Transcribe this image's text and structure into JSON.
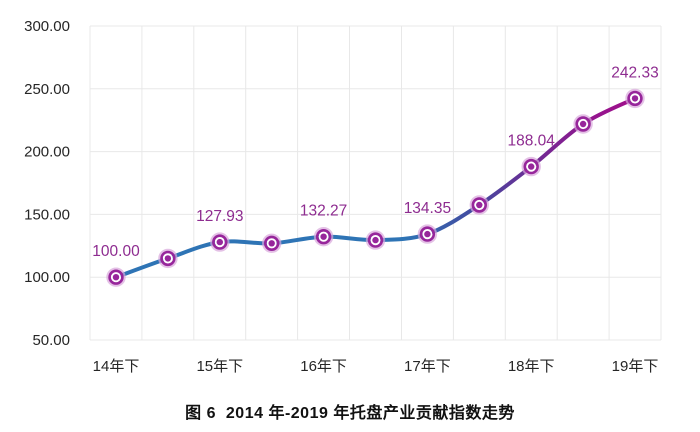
{
  "figure": {
    "caption": "图 6  2014 年-2019 年托盘产业贡献指数走势"
  },
  "colors": {
    "background": "#FFFFFF",
    "gridline": "#E8E8E8",
    "axis_text": "#262626",
    "data_label": "#8E2C90",
    "marker": "#97269B",
    "marker_halo": "#D9A6DB",
    "line_gradient": [
      {
        "offset": "0%",
        "color": "#2E74B5"
      },
      {
        "offset": "55%",
        "color": "#2E74B5"
      },
      {
        "offset": "68%",
        "color": "#45489F"
      },
      {
        "offset": "78%",
        "color": "#6F2B94"
      },
      {
        "offset": "88%",
        "color": "#93158E"
      },
      {
        "offset": "100%",
        "color": "#AA0B8A"
      }
    ]
  },
  "chart_data": {
    "type": "line",
    "title": "图 6  2014 年-2019 年托盘产业贡献指数走势",
    "xlabel": "",
    "ylabel": "",
    "ylim": [
      50,
      300
    ],
    "grid": true,
    "legend_position": "none",
    "y_ticks": [
      {
        "value": 300,
        "label": "300.00"
      },
      {
        "value": 250,
        "label": "250.00"
      },
      {
        "value": 200,
        "label": "200.00"
      },
      {
        "value": 150,
        "label": "150.00"
      },
      {
        "value": 100,
        "label": "100.00"
      },
      {
        "value": 50,
        "label": "50.00"
      }
    ],
    "x_ticks": [
      {
        "position": 0,
        "label": "14年下"
      },
      {
        "position": 2,
        "label": "15年下"
      },
      {
        "position": 4,
        "label": "16年下"
      },
      {
        "position": 6,
        "label": "17年下"
      },
      {
        "position": 8,
        "label": "18年下"
      },
      {
        "position": 10,
        "label": "19年下"
      }
    ],
    "points": [
      {
        "value": 100.0,
        "label": "100.00"
      },
      {
        "value": 115.0,
        "estimated": true
      },
      {
        "value": 127.93,
        "label": "127.93"
      },
      {
        "value": 127.0,
        "estimated": true
      },
      {
        "value": 132.27,
        "label": "132.27"
      },
      {
        "value": 129.5,
        "estimated": true
      },
      {
        "value": 134.35,
        "label": "134.35"
      },
      {
        "value": 157.5,
        "estimated": true
      },
      {
        "value": 188.04,
        "label": "188.04"
      },
      {
        "value": 222.0,
        "estimated": true
      },
      {
        "value": 242.33,
        "label": "242.33"
      }
    ]
  }
}
